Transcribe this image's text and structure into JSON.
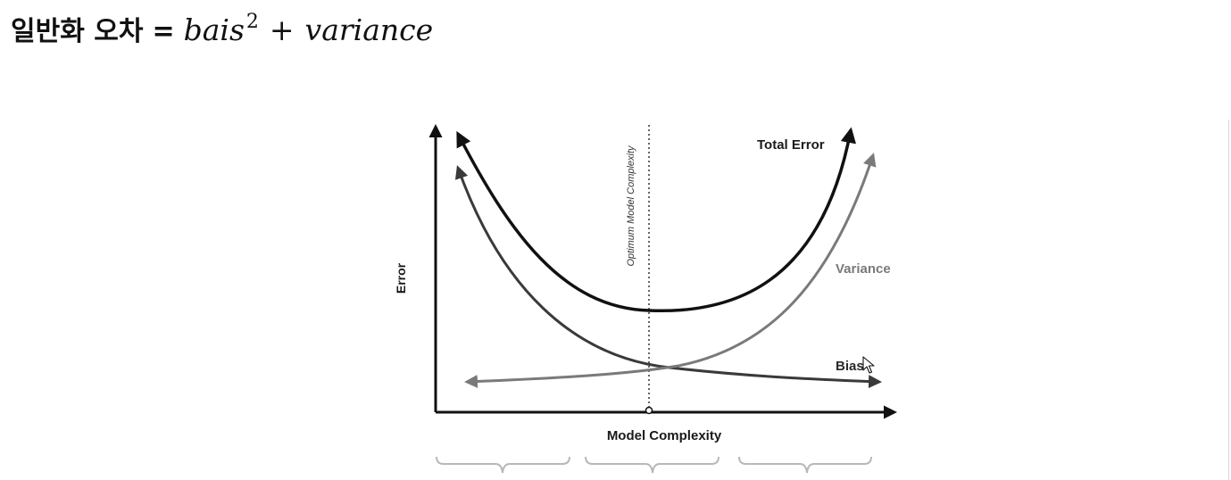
{
  "header": {
    "label": "일반화 오차",
    "equals": "=",
    "formula": {
      "term1": "bais",
      "exponent": "2",
      "operator": "+",
      "term2": "variance"
    }
  },
  "diagram": {
    "y_axis_label": "Error",
    "x_axis_label": "Model Complexity",
    "optimum_label": "Optimum Model Complexity",
    "curves": {
      "total_error": "Total Error",
      "variance": "Variance",
      "bias": "Bias"
    },
    "colors": {
      "total_error": "#111111",
      "variance": "#7a7a7a",
      "bias": "#3a3a3a",
      "axis": "#111111",
      "bracket": "#b8b8b8"
    }
  }
}
